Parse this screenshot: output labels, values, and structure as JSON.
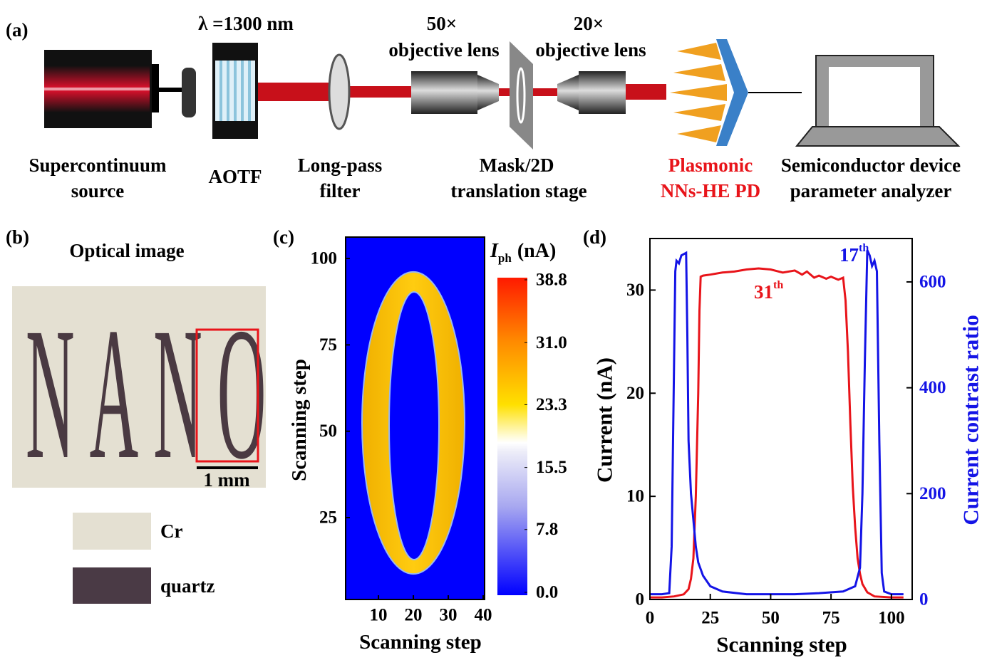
{
  "panel_a": {
    "label": "(a)",
    "wavelength": "λ =1300 nm",
    "components": [
      {
        "lines": [
          "Supercontinuum",
          "source"
        ]
      },
      {
        "lines": [
          "AOTF"
        ]
      },
      {
        "lines": [
          "Long-pass",
          "filter"
        ]
      },
      {
        "lines": [
          "Mask/2D",
          "translation stage"
        ]
      },
      {
        "lines": [
          "Plasmonic",
          "NNs-HE PD"
        ]
      },
      {
        "lines": [
          "Semiconductor device",
          "parameter analyzer"
        ]
      }
    ],
    "objectives": [
      {
        "magnification": "50×",
        "name": "objective lens"
      },
      {
        "magnification": "20×",
        "name": "objective lens"
      }
    ]
  },
  "panel_b": {
    "label": "(b)",
    "title": "Optical image",
    "image_text": "NANO",
    "scale_bar": "1 mm",
    "legend": [
      "Cr",
      "quartz"
    ]
  },
  "chart_data": [
    {
      "type": "heatmap",
      "label": "(c)",
      "xlabel": "Scanning step",
      "ylabel": "Scanning step",
      "xlim": [
        0.6,
        40.4
      ],
      "ylim": [
        1.3,
        106.2
      ],
      "xticks": [
        10,
        20,
        30,
        40
      ],
      "yticks": [
        25,
        50,
        75,
        100
      ],
      "colorbar": {
        "title": {
          "symbol": "I",
          "subscript": "ph",
          "unit": "(nA)"
        },
        "clim": [
          0,
          38.8
        ],
        "ticks": [
          {
            "value": 0,
            "label": "0.0"
          },
          7.8,
          15.5,
          23.3,
          {
            "value": 31,
            "label": "31.0"
          },
          38.8
        ]
      }
    },
    {
      "type": "line",
      "label": "(d)",
      "xlabel": "Scanning step",
      "ylabel": "Current (nA)",
      "y2label": "Current contrast ratio",
      "xlim": [
        0,
        108.6
      ],
      "ylim": [
        0,
        35
      ],
      "y2lim": [
        0,
        682
      ],
      "xticks": [
        0,
        25,
        50,
        75,
        100
      ],
      "yticks": [
        0,
        10,
        20,
        30
      ],
      "y2ticks": [
        0,
        200,
        400,
        600
      ],
      "annotations": [
        {
          "text": "31",
          "superscript": "th",
          "color": "#e8141a"
        },
        {
          "text": "17",
          "superscript": "th",
          "color": "#1414e6"
        }
      ],
      "series": [
        {
          "color": "#e8141a",
          "axis": "y",
          "x": [
            0,
            5,
            10,
            14,
            16,
            17,
            18,
            19,
            20,
            20.5,
            21,
            22,
            25,
            30,
            35,
            40,
            45,
            50,
            55,
            60,
            63,
            65,
            68,
            70,
            73,
            75,
            78,
            80,
            81,
            82,
            83,
            84,
            85,
            86,
            87,
            88,
            90,
            93,
            100,
            105
          ],
          "values": [
            0.2,
            0.2,
            0.3,
            0.5,
            1,
            2,
            4,
            10,
            20,
            28,
            31.3,
            31.4,
            31.5,
            31.7,
            31.8,
            32.0,
            32.1,
            32.0,
            31.7,
            31.9,
            31.5,
            31.8,
            31.2,
            31.4,
            31.1,
            31.3,
            31.0,
            31.2,
            29,
            24,
            17,
            11,
            7,
            4,
            2.5,
            1.5,
            0.7,
            0.3,
            0.2,
            0.2
          ]
        },
        {
          "color": "#1414e6",
          "axis": "y2",
          "x": [
            0,
            5,
            8,
            9,
            10,
            10.5,
            11,
            12,
            13,
            15,
            15.5,
            16,
            17,
            18,
            19,
            20,
            22,
            25,
            30,
            40,
            50,
            60,
            70,
            80,
            85,
            87,
            88,
            89,
            90,
            91,
            92,
            93,
            94,
            95,
            96,
            97,
            100,
            105
          ],
          "values": [
            10,
            10,
            12,
            100,
            450,
            620,
            640,
            635,
            650,
            655,
            500,
            300,
            200,
            150,
            100,
            70,
            45,
            25,
            15,
            10,
            10,
            10,
            12,
            15,
            25,
            60,
            200,
            450,
            660,
            650,
            630,
            640,
            620,
            300,
            50,
            15,
            10,
            10
          ]
        }
      ]
    }
  ]
}
